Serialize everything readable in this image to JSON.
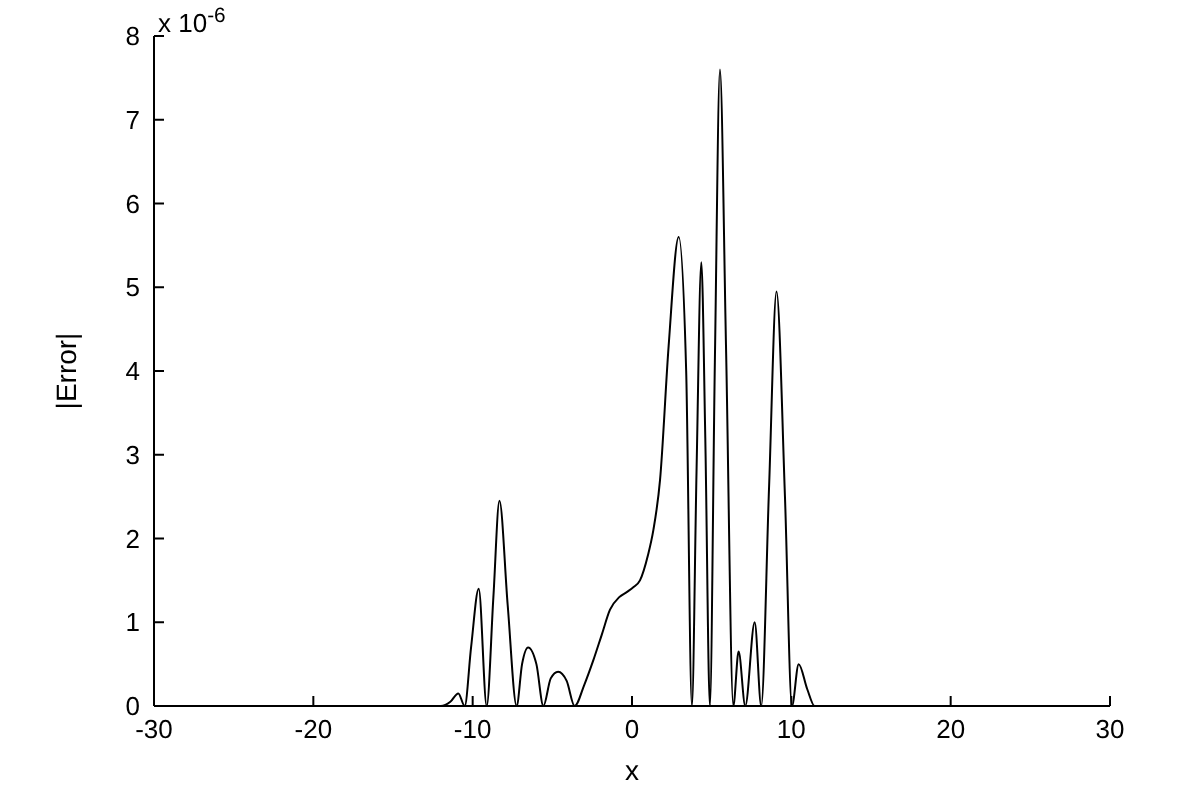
{
  "chart_data": {
    "type": "line",
    "xlabel": "x",
    "ylabel": "|Error|",
    "annotations": [
      "x 10$^{-6}$"
    ],
    "xlim": [
      -30,
      30
    ],
    "ylim": [
      0,
      8
    ],
    "xticks": [
      -30,
      -20,
      -10,
      0,
      10,
      20,
      30
    ],
    "yticks": [
      0,
      1,
      2,
      3,
      4,
      5,
      6,
      7,
      8
    ],
    "grid": false,
    "marker": "none",
    "line_style": "solid",
    "series": [
      {
        "color": "#000000",
        "x": [
          -30,
          -12,
          -11.4,
          -10.9,
          -10.5,
          -10.1,
          -9.62,
          -9.12,
          -8.7,
          -8.32,
          -7.8,
          -7.24,
          -6.9,
          -6.52,
          -6.0,
          -5.56,
          -5.1,
          -4.64,
          -4.1,
          -3.6,
          -3,
          -2.42,
          -1.9,
          -1.38,
          -0.8,
          -0.33,
          0.1,
          0.5,
          1.0,
          1.34,
          1.76,
          2.3,
          2.93,
          3.4,
          3.76,
          4.05,
          4.35,
          4.6,
          4.89,
          5.2,
          5.52,
          5.9,
          6.36,
          6.69,
          7.11,
          7.7,
          8.11,
          8.6,
          9.07,
          9.6,
          10.04,
          10.46,
          11.0,
          11.46,
          30
        ],
        "values": [
          0,
          0,
          0.05,
          0.15,
          0,
          0.7,
          1.4,
          0,
          1.3,
          2.45,
          1.2,
          0,
          0.5,
          0.7,
          0.5,
          0,
          0.33,
          0.41,
          0.3,
          0,
          0.25,
          0.55,
          0.85,
          1.15,
          1.3,
          1.36,
          1.42,
          1.5,
          1.8,
          2.1,
          2.7,
          4.3,
          5.6,
          4.0,
          0,
          2.8,
          5.3,
          3.2,
          0,
          4.1,
          7.6,
          4.3,
          0,
          0.65,
          0,
          1.0,
          0,
          2.6,
          4.95,
          2.5,
          0,
          0.5,
          0.2,
          0,
          0
        ]
      }
    ]
  }
}
